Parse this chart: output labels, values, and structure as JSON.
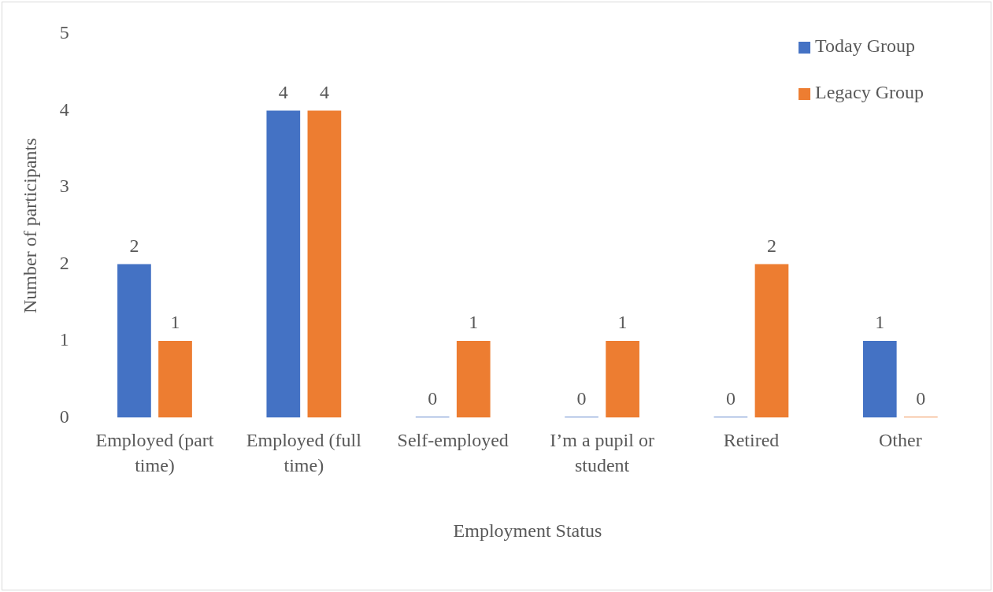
{
  "chart_data": {
    "type": "bar",
    "xlabel": "Employment Status",
    "ylabel": "Number of participants",
    "categories": [
      "Employed (part time)",
      "Employed (full time)",
      "Self-employed",
      "I’m a pupil or student",
      "Retired",
      "Other"
    ],
    "series": [
      {
        "name": "Today Group",
        "color": "#4472c4",
        "values": [
          2,
          4,
          0,
          0,
          0,
          1
        ]
      },
      {
        "name": "Legacy Group",
        "color": "#ed7d31",
        "values": [
          1,
          4,
          1,
          1,
          2,
          0
        ]
      }
    ],
    "ylim": [
      0,
      5
    ],
    "yticks": [
      0,
      1,
      2,
      3,
      4,
      5
    ],
    "grid": false,
    "legend": "top right",
    "data_labels": true
  }
}
